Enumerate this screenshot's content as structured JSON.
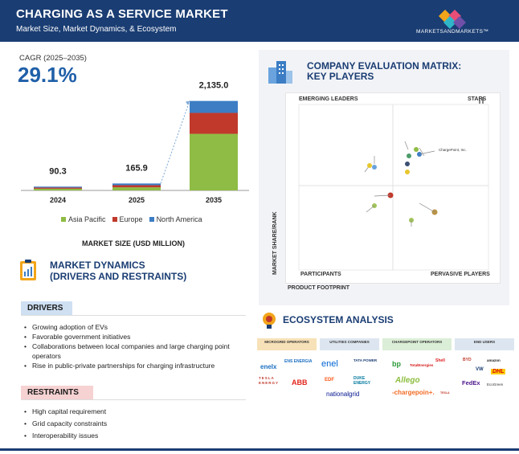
{
  "header": {
    "title": "CHARGING AS A SERVICE MARKET",
    "subtitle": "Market Size, Market Dynamics, & Ecosystem",
    "brand": "MARKETSANDMARKETS™"
  },
  "cagr": {
    "label": "CAGR (2025–2035)",
    "value": "29.1%"
  },
  "chart_data": {
    "type": "bar",
    "stacked": true,
    "categories": [
      "2024",
      "2025",
      "2035"
    ],
    "totals": [
      90.3,
      165.9,
      2135.0
    ],
    "total_labels": [
      "90.3",
      "165.9",
      "2,135.0"
    ],
    "series": [
      {
        "name": "Asia Pacific",
        "values": [
          41,
          75,
          1350
        ]
      },
      {
        "name": "Europe",
        "values": [
          27,
          50,
          500
        ]
      },
      {
        "name": "North America",
        "values": [
          22.3,
          40.9,
          285
        ]
      }
    ],
    "colors": [
      "#8fbc45",
      "#c0392b",
      "#3c7dc4"
    ],
    "xlabel": "MARKET SIZE (USD MILLION)",
    "ylim": [
      0,
      2300
    ]
  },
  "legend": [
    "Asia Pacific",
    "Europe",
    "North America"
  ],
  "market_dynamics": {
    "title_line1": "MARKET DYNAMICS",
    "title_line2": "(DRIVERS AND RESTRAINTS)",
    "drivers_label": "DRIVERS",
    "drivers": [
      "Growing adoption of EVs",
      "Favorable government initiatives",
      "Collaborations between local companies and large charging point operators",
      "Rise in public-private partnerships for charging infrastructure"
    ],
    "restraints_label": "RESTRAINTS",
    "restraints": [
      "High capital requirement",
      "Grid capacity constraints",
      "Interoperability issues"
    ]
  },
  "matrix": {
    "title_line1": "COMPANY EVALUATION MATRIX:",
    "title_line2": "KEY PLAYERS",
    "quadrants": {
      "emerging": "EMERGING LEADERS",
      "stars": "STARS",
      "participants": "PARTICIPANTS",
      "pervasive": "PERVASIVE PLAYERS"
    },
    "y_axis": "MARKET SHARE/RANK",
    "x_axis": "PRODUCT FOOTPRINT",
    "highlight_label": "ChargePoint, Inc."
  },
  "ecosystem": {
    "title": "ECOSYSTEM ANALYSIS",
    "columns": [
      "MICROGRID OPERATORS",
      "UTILITIES COMPANIES",
      "CHARGEPOINT OPERATORS",
      "END USERS"
    ],
    "logos": {
      "enel_x": "enelx",
      "ens": "ENS ENERGIA",
      "tesla_energy": "TESLA ENERGY",
      "abb": "ABB",
      "enel": "enel",
      "tata": "TATA POWER",
      "edf": "EDF",
      "duke": "DUKE ENERGY",
      "national_grid": "nationalgrid",
      "bp": "bp",
      "total": "TotalEnergies",
      "allego": "Allego",
      "shell": "Shell",
      "chargepoint": "-chargepoin+.",
      "tesla": "TESLA",
      "byd": "BYD",
      "amazon": "amazon",
      "vw": "VW",
      "dhl": "DHL",
      "fedex": "FedEx",
      "ecogreen": "EcoGreen"
    }
  }
}
